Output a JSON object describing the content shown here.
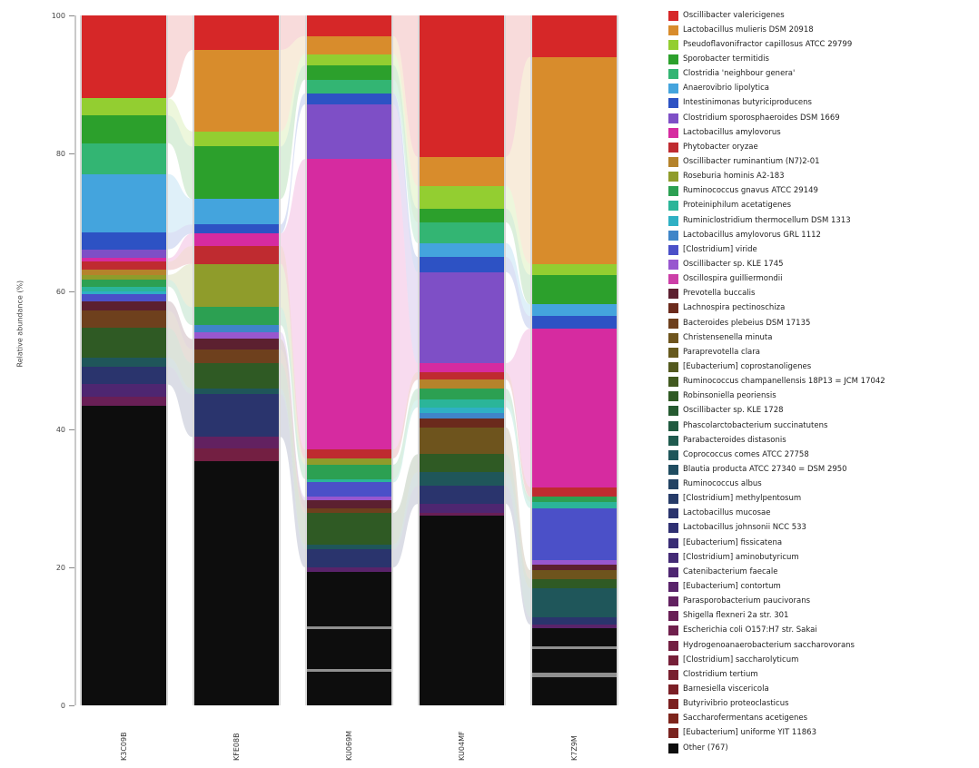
{
  "figure": {
    "title": "",
    "y_axis_label": "Relative abundance (%)"
  },
  "axis": {
    "ticks": [
      100,
      80,
      60,
      40,
      20,
      0
    ]
  },
  "legend": {
    "entries": [
      {
        "label": "Oscillibacter valericigenes",
        "color": "#d62728"
      },
      {
        "label": "Lactobacillus mulieris DSM 20918",
        "color": "#d88c2c"
      },
      {
        "label": "Pseudoflavonifractor capillosus ATCC 29799",
        "color": "#93ce31"
      },
      {
        "label": "Sporobacter termitidis",
        "color": "#2ca02c"
      },
      {
        "label": "Clostridia 'neighbour genera'",
        "color": "#33b573"
      },
      {
        "label": "Anaerovibrio lipolytica",
        "color": "#44a4dd"
      },
      {
        "label": "Intestinimonas butyriciproducens",
        "color": "#2d52c4"
      },
      {
        "label": "Clostridium sporosphaeroides DSM 1669",
        "color": "#7e4fc6"
      },
      {
        "label": "Lactobacillus amylovorus",
        "color": "#d62ba0"
      },
      {
        "label": "Phytobacter oryzae",
        "color": "#bf2b30"
      },
      {
        "label": "Oscillibacter ruminantium (N7)2-01",
        "color": "#b5832b"
      },
      {
        "label": "Roseburia hominis A2-183",
        "color": "#8f9c2b"
      },
      {
        "label": "Ruminococcus gnavus ATCC 29149",
        "color": "#2ca052"
      },
      {
        "label": "Proteiniphilum acetatigenes",
        "color": "#2bb599"
      },
      {
        "label": "Ruminiclostridium thermocellum DSM 1313",
        "color": "#2fb0c4"
      },
      {
        "label": "Lactobacillus amylovorus GRL 1112",
        "color": "#3f85c8"
      },
      {
        "label": "[Clostridium] viride",
        "color": "#4b50c8"
      },
      {
        "label": "Oscillibacter sp. KLE 1745",
        "color": "#9857cf"
      },
      {
        "label": "Oscillospira guilliermondii",
        "color": "#cc3fa8"
      },
      {
        "label": "Prevotella buccalis",
        "color": "#5c2030"
      },
      {
        "label": "Lachnospira pectinoschiza",
        "color": "#6b2a1c"
      },
      {
        "label": "Bacteroides plebeius DSM 17135",
        "color": "#6e401d"
      },
      {
        "label": "Christensenella minuta",
        "color": "#6e541d"
      },
      {
        "label": "Paraprevotella clara",
        "color": "#66591d"
      },
      {
        "label": "[Eubacterium] coprostanoligenes",
        "color": "#53591e"
      },
      {
        "label": "Ruminococcus champanellensis 18P13 = JCM 17042",
        "color": "#41591f"
      },
      {
        "label": "Robinsoniella peoriensis",
        "color": "#2f5a24"
      },
      {
        "label": "Oscillibacter sp. KLE 1728",
        "color": "#255a30"
      },
      {
        "label": "Phascolarctobacterium succinatutens",
        "color": "#205a40"
      },
      {
        "label": "Parabacteroides distasonis",
        "color": "#1f5a4e"
      },
      {
        "label": "Coprococcus comes ATCC 27758",
        "color": "#1f565a"
      },
      {
        "label": "Blautia producta ATCC 27340 = DSM 2950",
        "color": "#1f4c60"
      },
      {
        "label": "Ruminococcus albus",
        "color": "#224263"
      },
      {
        "label": "[Clostridium] methylpentosum",
        "color": "#263b68"
      },
      {
        "label": "Lactobacillus mucosae",
        "color": "#2a346d"
      },
      {
        "label": "Lactobacillus johnsonii NCC 533",
        "color": "#2f3072"
      },
      {
        "label": "[Eubacterium] fissicatena",
        "color": "#392d75"
      },
      {
        "label": "[Clostridium] aminobutyricum",
        "color": "#432a75"
      },
      {
        "label": "Catenibacterium faecale",
        "color": "#4e2671"
      },
      {
        "label": "[Eubacterium] contortum",
        "color": "#59236a"
      },
      {
        "label": "Parasporobacterium paucivorans",
        "color": "#622160"
      },
      {
        "label": "Shigella flexneri 2a str. 301",
        "color": "#691f56"
      },
      {
        "label": "Escherichia coli O157:H7 str. Sakai",
        "color": "#6f1f4c"
      },
      {
        "label": "Hydrogenoanaerobacterium saccharovorans",
        "color": "#731f42"
      },
      {
        "label": "[Clostridium] saccharolyticum",
        "color": "#761f38"
      },
      {
        "label": "Clostridium tertium",
        "color": "#781f2e"
      },
      {
        "label": "Barnesiella viscericola",
        "color": "#7a1f26"
      },
      {
        "label": "Butyrivibrio proteoclasticus",
        "color": "#7b1f1f"
      },
      {
        "label": "Saccharofermentans acetigenes",
        "color": "#7d241b"
      },
      {
        "label": "[Eubacterium] uniforme YIT 11863",
        "color": "#7a2420"
      },
      {
        "label": "Other (767)",
        "color": "#0d0d0d"
      }
    ]
  },
  "chart_data": {
    "type": "bar",
    "variant": "stacked-alluvial",
    "title": "",
    "xlabel": "",
    "ylabel": "Relative abundance (%)",
    "ylim": [
      0,
      100
    ],
    "grid": false,
    "legend_position": "right",
    "categories": [
      "K3C09B",
      "KFE08B",
      "KU069M",
      "KU04MF",
      "K7Z9M"
    ],
    "bars": [
      {
        "sample": "K3C09B",
        "segments": [
          [
            0,
            12.0
          ],
          [
            2,
            2.5
          ],
          [
            3,
            4.0
          ],
          [
            4,
            4.5
          ],
          [
            5,
            8.5
          ],
          [
            6,
            2.4
          ],
          [
            7,
            1.3
          ],
          [
            8,
            0.5
          ],
          [
            9,
            1.2
          ],
          [
            10,
            0.7
          ],
          [
            11,
            0.7
          ],
          [
            12,
            1.0
          ],
          [
            13,
            0.7
          ],
          [
            14,
            0.4
          ],
          [
            16,
            1.0
          ],
          [
            19,
            1.4
          ],
          [
            21,
            2.5
          ],
          [
            26,
            4.3
          ],
          [
            30,
            1.3
          ],
          [
            34,
            2.6
          ],
          [
            38,
            1.8
          ],
          [
            41,
            1.3
          ],
          [
            50,
            43.4
          ]
        ],
        "dividers": []
      },
      {
        "sample": "KFE08B",
        "segments": [
          [
            0,
            5.0
          ],
          [
            1,
            11.8
          ],
          [
            2,
            2.2
          ],
          [
            3,
            7.6
          ],
          [
            5,
            3.7
          ],
          [
            6,
            1.3
          ],
          [
            8,
            1.8
          ],
          [
            9,
            2.6
          ],
          [
            11,
            6.3
          ],
          [
            12,
            2.6
          ],
          [
            15,
            1.0
          ],
          [
            17,
            1.0
          ],
          [
            19,
            1.5
          ],
          [
            21,
            2.0
          ],
          [
            26,
            3.7
          ],
          [
            30,
            0.8
          ],
          [
            34,
            6.2
          ],
          [
            40,
            1.7
          ],
          [
            43,
            1.8
          ],
          [
            50,
            35.4
          ]
        ],
        "dividers": []
      },
      {
        "sample": "KU069M",
        "segments": [
          [
            0,
            3.0
          ],
          [
            1,
            2.6
          ],
          [
            2,
            1.6
          ],
          [
            3,
            2.1
          ],
          [
            4,
            2.0
          ],
          [
            6,
            1.6
          ],
          [
            7,
            7.9
          ],
          [
            8,
            42.1
          ],
          [
            9,
            1.3
          ],
          [
            11,
            0.9
          ],
          [
            12,
            2.1
          ],
          [
            13,
            0.5
          ],
          [
            16,
            2.1
          ],
          [
            17,
            0.5
          ],
          [
            19,
            1.1
          ],
          [
            21,
            0.7
          ],
          [
            26,
            4.6
          ],
          [
            30,
            0.7
          ],
          [
            34,
            2.6
          ],
          [
            39,
            0.7
          ],
          [
            50,
            19.3
          ]
        ],
        "dividers": [
          {
            "at": 88.6,
            "h": 3
          },
          {
            "at": 94.7,
            "h": 3
          }
        ]
      },
      {
        "sample": "KU04MF",
        "segments": [
          [
            0,
            20.5
          ],
          [
            1,
            4.2
          ],
          [
            2,
            3.3
          ],
          [
            3,
            2.0
          ],
          [
            4,
            3.0
          ],
          [
            5,
            2.0
          ],
          [
            6,
            2.2
          ],
          [
            7,
            13.2
          ],
          [
            8,
            1.3
          ],
          [
            9,
            1.1
          ],
          [
            10,
            1.3
          ],
          [
            12,
            1.6
          ],
          [
            13,
            1.1
          ],
          [
            14,
            0.9
          ],
          [
            15,
            0.7
          ],
          [
            20,
            1.3
          ],
          [
            22,
            3.9
          ],
          [
            26,
            2.6
          ],
          [
            30,
            2.0
          ],
          [
            34,
            2.6
          ],
          [
            38,
            1.3
          ],
          [
            41,
            0.4
          ],
          [
            50,
            27.5
          ]
        ],
        "dividers": []
      },
      {
        "sample": "K7Z9M",
        "segments": [
          [
            0,
            6.0
          ],
          [
            1,
            30.0
          ],
          [
            2,
            1.6
          ],
          [
            3,
            4.3
          ],
          [
            5,
            1.7
          ],
          [
            6,
            1.8
          ],
          [
            8,
            23.0
          ],
          [
            9,
            1.4
          ],
          [
            12,
            0.7
          ],
          [
            13,
            0.9
          ],
          [
            16,
            7.5
          ],
          [
            17,
            0.7
          ],
          [
            19,
            0.8
          ],
          [
            22,
            1.3
          ],
          [
            26,
            1.3
          ],
          [
            30,
            4.2
          ],
          [
            34,
            1.1
          ],
          [
            39,
            0.5
          ],
          [
            50,
            11.2
          ]
        ],
        "dividers": [
          {
            "at": 91.4,
            "h": 3
          },
          {
            "at": 95.2,
            "h": 5
          }
        ]
      }
    ]
  },
  "layout_hints": {
    "flow_opacity": 0.17,
    "other_index": 50
  }
}
